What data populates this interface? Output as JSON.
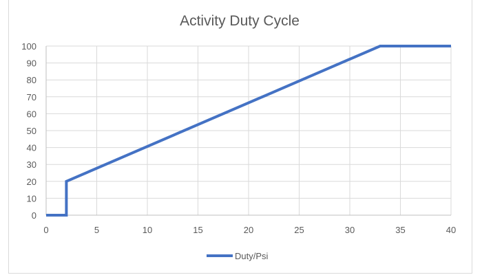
{
  "chart_data": {
    "type": "line",
    "title": "Activity Duty Cycle",
    "xlabel": "",
    "ylabel": "",
    "xlim": [
      0,
      40
    ],
    "ylim": [
      0,
      100
    ],
    "x_ticks": [
      0,
      5,
      10,
      15,
      20,
      25,
      30,
      35,
      40
    ],
    "y_ticks": [
      0,
      10,
      20,
      30,
      40,
      50,
      60,
      70,
      80,
      90,
      100
    ],
    "grid": true,
    "legend_position": "bottom",
    "series": [
      {
        "name": "Duty/Psi",
        "color": "#4472C4",
        "points": [
          {
            "x": 0,
            "y": 0
          },
          {
            "x": 2,
            "y": 0
          },
          {
            "x": 2,
            "y": 20
          },
          {
            "x": 33,
            "y": 100
          },
          {
            "x": 40,
            "y": 100
          }
        ]
      }
    ]
  }
}
